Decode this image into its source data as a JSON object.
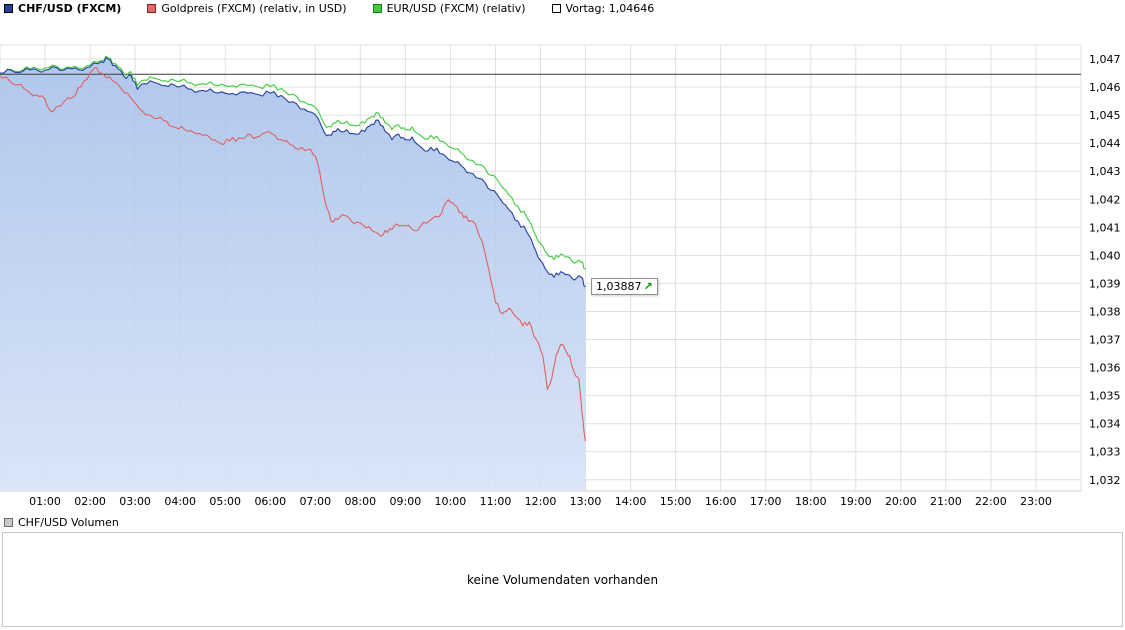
{
  "legend": {
    "items": [
      {
        "label": "CHF/USD (FXCM)",
        "color": "#24409e",
        "border": "#000000",
        "bold": true
      },
      {
        "label": "Goldpreis (FXCM) (relativ, in USD)",
        "color": "#e06a6a",
        "border": "#8b2020",
        "bold": false
      },
      {
        "label": "EUR/USD (FXCM) (relativ)",
        "color": "#3ecb3e",
        "border": "#1c7a1c",
        "bold": false
      },
      {
        "label": "Vortag: 1,04646",
        "color": "#ffffff",
        "border": "#000000",
        "bold": false
      }
    ]
  },
  "chart_data": {
    "type": "line",
    "title": "",
    "xlabel": "",
    "ylabel": "",
    "xlim": [
      0,
      24
    ],
    "ylim": [
      1.0316,
      1.0475
    ],
    "grid": true,
    "grid_color": "#e0e0e0",
    "area_gradient": [
      "#a3bde9",
      "#d6e3f7"
    ],
    "x_axis": {
      "tick_values": [
        1,
        2,
        3,
        4,
        5,
        6,
        7,
        8,
        9,
        10,
        11,
        12,
        13,
        14,
        15,
        16,
        17,
        18,
        19,
        20,
        21,
        22,
        23
      ],
      "tick_labels": [
        "01:00",
        "02:00",
        "03:00",
        "04:00",
        "05:00",
        "06:00",
        "07:00",
        "08:00",
        "09:00",
        "10:00",
        "11:00",
        "12:00",
        "13:00",
        "14:00",
        "15:00",
        "16:00",
        "17:00",
        "18:00",
        "19:00",
        "20:00",
        "21:00",
        "22:00",
        "23:00"
      ]
    },
    "y_axis": {
      "tick_values": [
        1.047,
        1.046,
        1.045,
        1.044,
        1.043,
        1.042,
        1.041,
        1.04,
        1.039,
        1.038,
        1.037,
        1.036,
        1.035,
        1.034,
        1.033,
        1.032
      ],
      "tick_labels": [
        "1,047",
        "1,046",
        "1,045",
        "1,044",
        "1,043",
        "1,042",
        "1,041",
        "1,040",
        "1,039",
        "1,038",
        "1,037",
        "1,036",
        "1,035",
        "1,034",
        "1,033",
        "1,032"
      ]
    },
    "reference_line": {
      "name": "Vortag",
      "value": 1.04646,
      "label": "1,04646",
      "color": "#3a3a3a"
    },
    "last_price_label": {
      "text": "1,03887",
      "value": 1.03887,
      "x": 13,
      "arrow": "up",
      "arrow_glyph": "↗",
      "arrow_color": "#009a00"
    },
    "series": [
      {
        "id": "chfusd",
        "name": "CHF/USD (FXCM)",
        "color": "#24409e",
        "fill": true,
        "points": [
          [
            0,
            1.0465
          ],
          [
            0.25,
            1.0466
          ],
          [
            0.5,
            1.04655
          ],
          [
            0.75,
            1.04665
          ],
          [
            1,
            1.0466
          ],
          [
            1.25,
            1.0467
          ],
          [
            1.5,
            1.04668
          ],
          [
            1.75,
            1.04662
          ],
          [
            2,
            1.04672
          ],
          [
            2.25,
            1.0469
          ],
          [
            2.4,
            1.047
          ],
          [
            2.55,
            1.04678
          ],
          [
            2.75,
            1.04638
          ],
          [
            2.9,
            1.04645
          ],
          [
            3.05,
            1.04592
          ],
          [
            3.2,
            1.04612
          ],
          [
            3.4,
            1.04618
          ],
          [
            3.6,
            1.04605
          ],
          [
            3.8,
            1.04612
          ],
          [
            4,
            1.04602
          ],
          [
            4.25,
            1.04592
          ],
          [
            4.5,
            1.04588
          ],
          [
            4.75,
            1.04582
          ],
          [
            5,
            1.04578
          ],
          [
            5.25,
            1.04572
          ],
          [
            5.5,
            1.04578
          ],
          [
            5.75,
            1.04572
          ],
          [
            6,
            1.04578
          ],
          [
            6.25,
            1.0457
          ],
          [
            6.5,
            1.04548
          ],
          [
            6.75,
            1.04522
          ],
          [
            7,
            1.04502
          ],
          [
            7.2,
            1.04438
          ],
          [
            7.35,
            1.04428
          ],
          [
            7.5,
            1.04452
          ],
          [
            7.7,
            1.04448
          ],
          [
            7.9,
            1.04432
          ],
          [
            8.1,
            1.04442
          ],
          [
            8.25,
            1.04468
          ],
          [
            8.4,
            1.04482
          ],
          [
            8.55,
            1.04442
          ],
          [
            8.7,
            1.04412
          ],
          [
            8.85,
            1.04432
          ],
          [
            9,
            1.04412
          ],
          [
            9.15,
            1.04422
          ],
          [
            9.3,
            1.04392
          ],
          [
            9.5,
            1.04372
          ],
          [
            9.7,
            1.04382
          ],
          [
            9.9,
            1.04352
          ],
          [
            10.1,
            1.04332
          ],
          [
            10.3,
            1.04312
          ],
          [
            10.5,
            1.04292
          ],
          [
            10.7,
            1.04272
          ],
          [
            10.9,
            1.04232
          ],
          [
            11.1,
            1.04202
          ],
          [
            11.3,
            1.04162
          ],
          [
            11.5,
            1.04122
          ],
          [
            11.7,
            1.04082
          ],
          [
            11.85,
            1.04032
          ],
          [
            12,
            1.03982
          ],
          [
            12.15,
            1.03942
          ],
          [
            12.3,
            1.03922
          ],
          [
            12.45,
            1.03942
          ],
          [
            12.6,
            1.03932
          ],
          [
            12.75,
            1.03912
          ],
          [
            12.9,
            1.03922
          ],
          [
            13,
            1.03887
          ]
        ]
      },
      {
        "id": "gold",
        "name": "Goldpreis (FXCM) (relativ, in USD)",
        "color": "#e06060",
        "fill": false,
        "points": [
          [
            0,
            1.0464
          ],
          [
            0.2,
            1.04625
          ],
          [
            0.4,
            1.04608
          ],
          [
            0.6,
            1.04588
          ],
          [
            0.8,
            1.04572
          ],
          [
            1,
            1.04558
          ],
          [
            1.15,
            1.04512
          ],
          [
            1.3,
            1.04532
          ],
          [
            1.45,
            1.04552
          ],
          [
            1.6,
            1.04562
          ],
          [
            1.8,
            1.04602
          ],
          [
            2,
            1.04652
          ],
          [
            2.15,
            1.04668
          ],
          [
            2.3,
            1.04645
          ],
          [
            2.5,
            1.04622
          ],
          [
            2.7,
            1.04592
          ],
          [
            2.9,
            1.04562
          ],
          [
            3.1,
            1.04522
          ],
          [
            3.3,
            1.04502
          ],
          [
            3.5,
            1.04488
          ],
          [
            3.7,
            1.04478
          ],
          [
            3.9,
            1.04455
          ],
          [
            4.1,
            1.04448
          ],
          [
            4.3,
            1.04438
          ],
          [
            4.5,
            1.04428
          ],
          [
            4.7,
            1.04412
          ],
          [
            4.9,
            1.04398
          ],
          [
            5.1,
            1.04408
          ],
          [
            5.3,
            1.04418
          ],
          [
            5.5,
            1.04432
          ],
          [
            5.7,
            1.04422
          ],
          [
            5.9,
            1.04438
          ],
          [
            6.1,
            1.04428
          ],
          [
            6.3,
            1.04408
          ],
          [
            6.5,
            1.04392
          ],
          [
            6.7,
            1.04385
          ],
          [
            6.9,
            1.04378
          ],
          [
            7.05,
            1.04332
          ],
          [
            7.2,
            1.04205
          ],
          [
            7.35,
            1.04122
          ],
          [
            7.5,
            1.04128
          ],
          [
            7.65,
            1.04142
          ],
          [
            7.8,
            1.04122
          ],
          [
            8,
            1.04115
          ],
          [
            8.2,
            1.04102
          ],
          [
            8.35,
            1.04082
          ],
          [
            8.5,
            1.04072
          ],
          [
            8.65,
            1.04095
          ],
          [
            8.8,
            1.04112
          ],
          [
            9,
            1.04105
          ],
          [
            9.2,
            1.04088
          ],
          [
            9.4,
            1.04118
          ],
          [
            9.6,
            1.04132
          ],
          [
            9.8,
            1.04148
          ],
          [
            9.95,
            1.04198
          ],
          [
            10.1,
            1.04178
          ],
          [
            10.25,
            1.04152
          ],
          [
            10.4,
            1.04122
          ],
          [
            10.55,
            1.04112
          ],
          [
            10.7,
            1.04052
          ],
          [
            10.85,
            1.03952
          ],
          [
            11,
            1.03832
          ],
          [
            11.15,
            1.03792
          ],
          [
            11.3,
            1.03812
          ],
          [
            11.45,
            1.03782
          ],
          [
            11.6,
            1.03748
          ],
          [
            11.75,
            1.03762
          ],
          [
            11.9,
            1.03702
          ],
          [
            12.05,
            1.03642
          ],
          [
            12.15,
            1.03522
          ],
          [
            12.25,
            1.03562
          ],
          [
            12.35,
            1.03648
          ],
          [
            12.45,
            1.03682
          ],
          [
            12.55,
            1.03662
          ],
          [
            12.65,
            1.03642
          ],
          [
            12.75,
            1.03582
          ],
          [
            12.85,
            1.03562
          ],
          [
            12.92,
            1.03442
          ],
          [
            13,
            1.03338
          ]
        ]
      },
      {
        "id": "eurusd",
        "name": "EUR/USD (FXCM) (relativ)",
        "color": "#3ecb3e",
        "fill": false,
        "points": [
          [
            0,
            1.04648
          ],
          [
            0.25,
            1.04662
          ],
          [
            0.5,
            1.0466
          ],
          [
            0.75,
            1.0467
          ],
          [
            1,
            1.04668
          ],
          [
            1.25,
            1.04675
          ],
          [
            1.5,
            1.04672
          ],
          [
            1.75,
            1.04668
          ],
          [
            2,
            1.04678
          ],
          [
            2.25,
            1.04695
          ],
          [
            2.4,
            1.04705
          ],
          [
            2.55,
            1.04685
          ],
          [
            2.75,
            1.04648
          ],
          [
            2.9,
            1.04655
          ],
          [
            3.05,
            1.04605
          ],
          [
            3.2,
            1.04625
          ],
          [
            3.4,
            1.04632
          ],
          [
            3.6,
            1.04622
          ],
          [
            3.8,
            1.04628
          ],
          [
            4,
            1.04622
          ],
          [
            4.25,
            1.04615
          ],
          [
            4.5,
            1.04612
          ],
          [
            4.75,
            1.04608
          ],
          [
            5,
            1.04605
          ],
          [
            5.25,
            1.046
          ],
          [
            5.5,
            1.04605
          ],
          [
            5.75,
            1.046
          ],
          [
            6,
            1.04602
          ],
          [
            6.25,
            1.04595
          ],
          [
            6.5,
            1.04575
          ],
          [
            6.75,
            1.04548
          ],
          [
            7,
            1.04528
          ],
          [
            7.2,
            1.04468
          ],
          [
            7.35,
            1.04458
          ],
          [
            7.5,
            1.04482
          ],
          [
            7.7,
            1.04478
          ],
          [
            7.9,
            1.04462
          ],
          [
            8.1,
            1.04472
          ],
          [
            8.25,
            1.04495
          ],
          [
            8.4,
            1.04508
          ],
          [
            8.55,
            1.04472
          ],
          [
            8.7,
            1.04448
          ],
          [
            8.85,
            1.04465
          ],
          [
            9,
            1.04448
          ],
          [
            9.15,
            1.04458
          ],
          [
            9.3,
            1.04432
          ],
          [
            9.5,
            1.04415
          ],
          [
            9.7,
            1.04425
          ],
          [
            9.9,
            1.04398
          ],
          [
            10.1,
            1.04378
          ],
          [
            10.3,
            1.04358
          ],
          [
            10.5,
            1.04338
          ],
          [
            10.7,
            1.04322
          ],
          [
            10.9,
            1.04285
          ],
          [
            11.1,
            1.04255
          ],
          [
            11.3,
            1.04215
          ],
          [
            11.5,
            1.04175
          ],
          [
            11.7,
            1.04135
          ],
          [
            11.85,
            1.04085
          ],
          [
            12,
            1.04042
          ],
          [
            12.15,
            1.04005
          ],
          [
            12.3,
            1.03985
          ],
          [
            12.45,
            1.04005
          ],
          [
            12.6,
            1.03995
          ],
          [
            12.75,
            1.03972
          ],
          [
            12.9,
            1.03975
          ],
          [
            13,
            1.03952
          ]
        ]
      }
    ]
  },
  "volume": {
    "legend_label": "CHF/USD Volumen",
    "legend_color": "#c8c8c8",
    "legend_border": "#6e6e6e",
    "empty_message": "keine Volumendaten vorhanden"
  }
}
